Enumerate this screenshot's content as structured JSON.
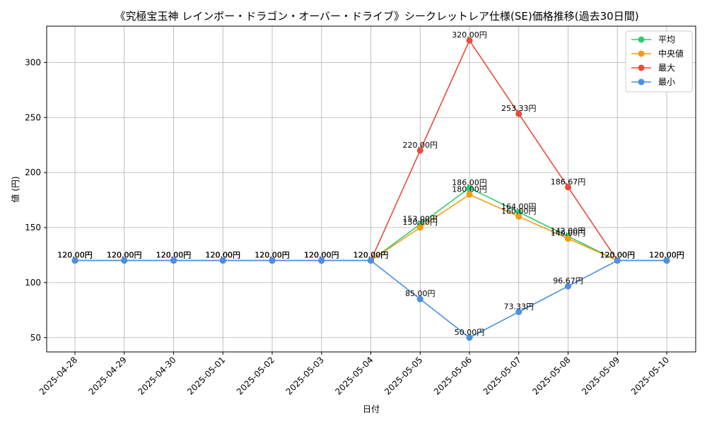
{
  "chart_data": {
    "type": "line",
    "title": "《究極宝玉神 レインボー・ドラゴン・オーバー・ドライブ》シークレットレア仕様(SE)価格推移(過去30日間)",
    "xlabel": "日付",
    "ylabel": "値 (円)",
    "categories": [
      "2025-04-28",
      "2025-04-29",
      "2025-04-30",
      "2025-05-01",
      "2025-05-02",
      "2025-05-03",
      "2025-05-04",
      "2025-05-05",
      "2025-05-06",
      "2025-05-07",
      "2025-05-08",
      "2025-05-09",
      "2025-05-10"
    ],
    "ylim": [
      37,
      333
    ],
    "yticks": [
      50,
      100,
      150,
      200,
      250,
      300
    ],
    "grid": true,
    "legend_position": "top-right",
    "series": [
      {
        "name": "平均",
        "color": "#2ecc71",
        "values": [
          120,
          120,
          120,
          120,
          120,
          120,
          120,
          153,
          186,
          164,
          142,
          120,
          120
        ],
        "labels": [
          "120.00円",
          "120.00円",
          "120.00円",
          "120.00円",
          "120.00円",
          "120.00円",
          "120.00円",
          "153.00円",
          "186.00円",
          "164.00円",
          "142.00円",
          "120.00円",
          "120.00円"
        ]
      },
      {
        "name": "中央値",
        "color": "#f39c12",
        "values": [
          120,
          120,
          120,
          120,
          120,
          120,
          120,
          150,
          180,
          160,
          140,
          120,
          120
        ],
        "labels": [
          "120.00円",
          "120.00円",
          "120.00円",
          "120.00円",
          "120.00円",
          "120.00円",
          "120.00円",
          "150.00円",
          "180.00円",
          "160.00円",
          "140.00円",
          "120.00円",
          "120.00円"
        ]
      },
      {
        "name": "最大",
        "color": "#e74c3c",
        "values": [
          120,
          120,
          120,
          120,
          120,
          120,
          120,
          220,
          320,
          253.33,
          186.67,
          120,
          120
        ],
        "labels": [
          "120.00円",
          "120.00円",
          "120.00円",
          "120.00円",
          "120.00円",
          "120.00円",
          "120.00円",
          "220.00円",
          "320.00円",
          "253.33円",
          "186.67円",
          "120.00円",
          "120.00円"
        ]
      },
      {
        "name": "最小",
        "color": "#4a90e2",
        "values": [
          120,
          120,
          120,
          120,
          120,
          120,
          120,
          85,
          50,
          73.33,
          96.67,
          120,
          120
        ],
        "labels": [
          "120.00円",
          "120.00円",
          "120.00円",
          "120.00円",
          "120.00円",
          "120.00円",
          "120.00円",
          "85.00円",
          "50.00円",
          "73.33円",
          "96.67円",
          "120.00円",
          "120.00円"
        ]
      }
    ]
  }
}
